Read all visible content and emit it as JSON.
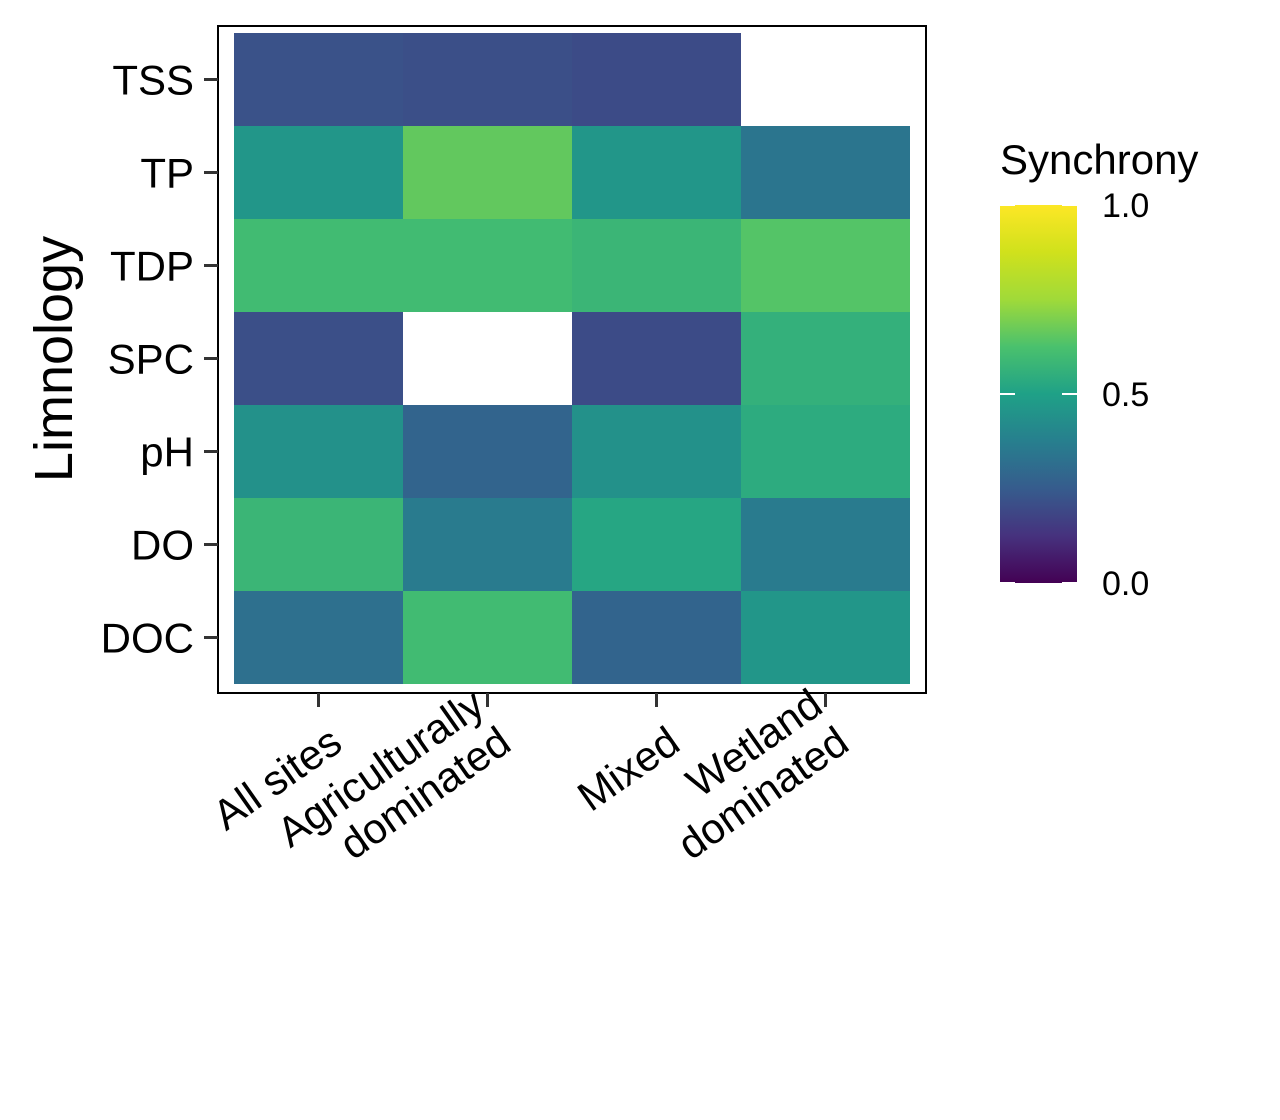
{
  "chart_data": {
    "type": "heatmap",
    "title": "",
    "xlabel": "",
    "ylabel": "Limnology",
    "x_categories": [
      [
        "All sites"
      ],
      [
        "Agriculturally",
        "dominated"
      ],
      [
        "Mixed"
      ],
      [
        "Wetland",
        "dominated"
      ]
    ],
    "y_categories": [
      "TSS",
      "TP",
      "TDP",
      "SPC",
      "pH",
      "DO",
      "DOC"
    ],
    "values": [
      [
        0.22,
        0.21,
        0.2,
        null
      ],
      [
        0.46,
        0.66,
        0.46,
        0.34
      ],
      [
        0.6,
        0.6,
        0.58,
        0.64
      ],
      [
        0.21,
        null,
        0.2,
        0.56
      ],
      [
        0.44,
        0.28,
        0.44,
        0.54
      ],
      [
        0.58,
        0.36,
        0.52,
        0.36
      ],
      [
        0.32,
        0.6,
        0.28,
        0.46
      ]
    ],
    "legend": {
      "title": "Synchrony",
      "limits": [
        0.0,
        1.0
      ],
      "ticks": [
        0.0,
        0.5,
        1.0
      ],
      "tick_labels": [
        "0.0",
        "0.5",
        "1.0"
      ],
      "palette": "viridis",
      "position": "right"
    }
  }
}
